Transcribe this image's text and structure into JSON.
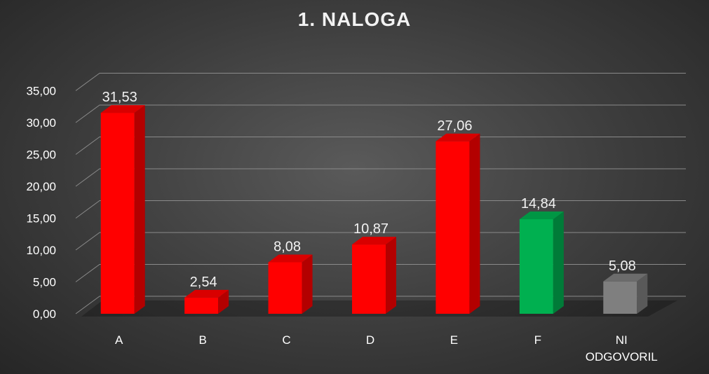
{
  "chart_data": {
    "type": "bar",
    "title": "1. NALOGA",
    "xlabel": "",
    "ylabel": "",
    "categories": [
      "A",
      "B",
      "C",
      "D",
      "E",
      "F",
      "NI ODGOVORIL"
    ],
    "values": [
      31.53,
      2.54,
      8.08,
      10.87,
      27.06,
      14.84,
      5.08
    ],
    "value_labels": [
      "31,53",
      "2,54",
      "8,08",
      "10,87",
      "27,06",
      "14,84",
      "5,08"
    ],
    "colors": [
      "#ff0000",
      "#ff0000",
      "#ff0000",
      "#ff0000",
      "#ff0000",
      "#00b050",
      "#7f7f7f"
    ],
    "ylim": [
      0,
      35
    ],
    "yticks": [
      0,
      5,
      10,
      15,
      20,
      25,
      30,
      35
    ],
    "ytick_labels": [
      "0,00",
      "5,00",
      "10,00",
      "15,00",
      "20,00",
      "25,00",
      "30,00",
      "35,00"
    ],
    "grid": true,
    "legend": "none",
    "style": "3d-column"
  }
}
